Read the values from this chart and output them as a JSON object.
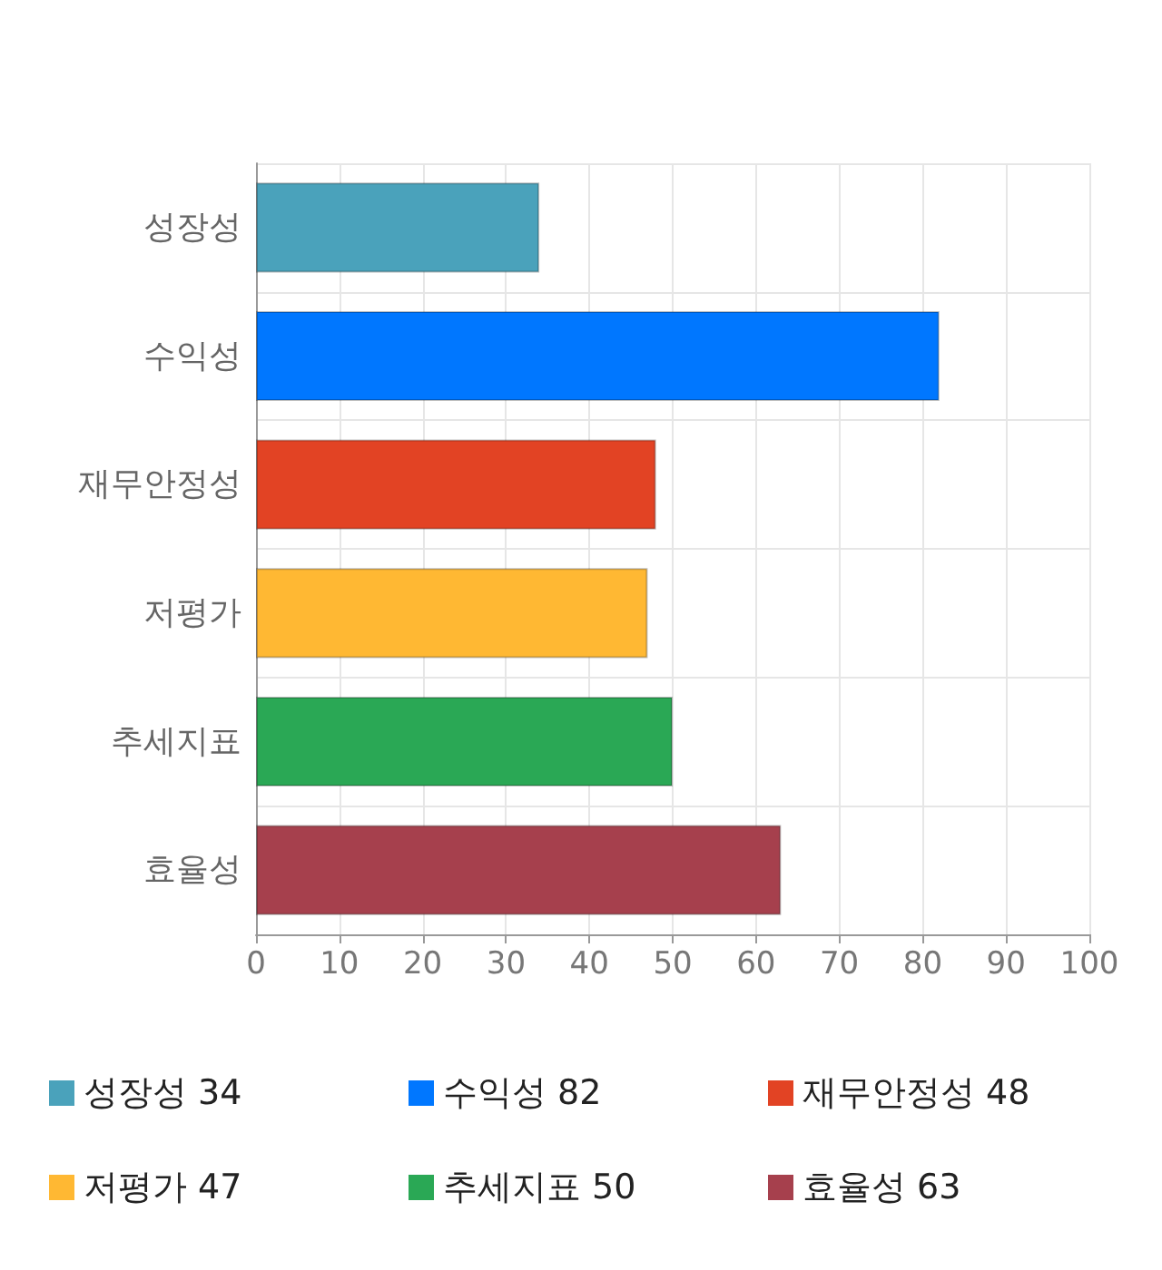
{
  "chart_data": {
    "type": "bar",
    "orientation": "horizontal",
    "stacked": true,
    "categories": [
      "성장성",
      "수익성",
      "재무안정성",
      "저평가",
      "추세지표",
      "효율성"
    ],
    "series": [
      {
        "name": "성장성 34",
        "color": "#4aa2bb",
        "values": [
          34,
          null,
          null,
          null,
          null,
          null
        ]
      },
      {
        "name": "수익성 82",
        "color": "#0077ff",
        "values": [
          null,
          82,
          null,
          null,
          null,
          null
        ]
      },
      {
        "name": "재무안정성 48",
        "color": "#e24324",
        "values": [
          null,
          null,
          48,
          null,
          null,
          null
        ]
      },
      {
        "name": "저평가 47",
        "color": "#ffb833",
        "values": [
          null,
          null,
          null,
          47,
          null,
          null
        ]
      },
      {
        "name": "추세지표 50",
        "color": "#2aa855",
        "values": [
          null,
          null,
          null,
          null,
          50,
          null
        ]
      },
      {
        "name": "효율성 63",
        "color": "#a6404d",
        "values": [
          null,
          null,
          null,
          null,
          null,
          63
        ]
      }
    ],
    "xlim": [
      0,
      100
    ],
    "xticks": [
      0,
      10,
      20,
      30,
      40,
      50,
      60,
      70,
      80,
      90,
      100
    ],
    "grid": true,
    "legend": "bottom"
  }
}
